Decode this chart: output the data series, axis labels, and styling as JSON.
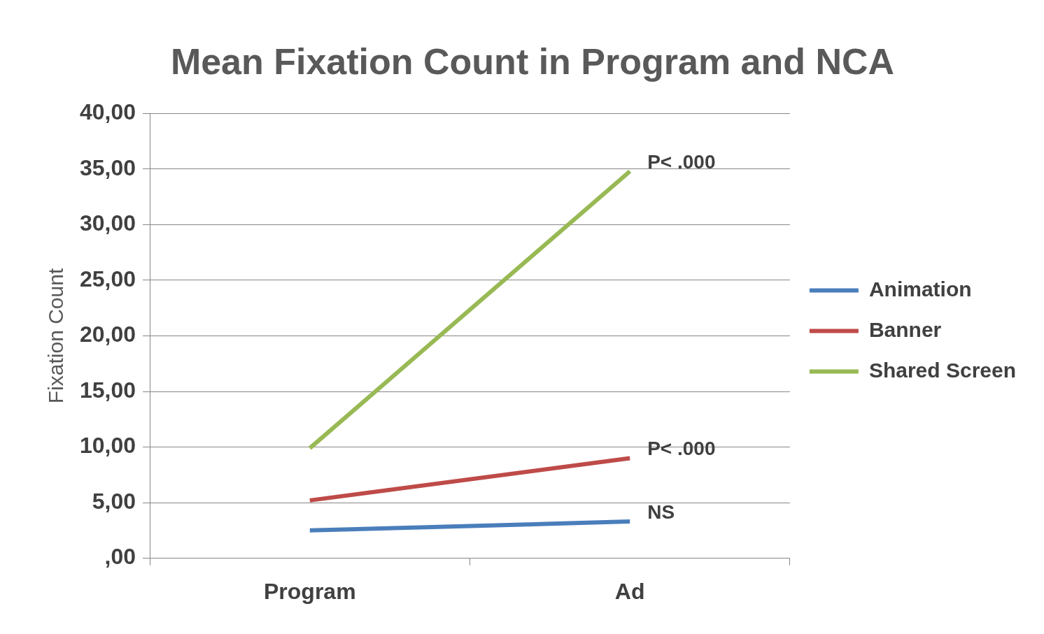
{
  "chart_data": {
    "type": "line",
    "title": "Mean Fixation Count in Program and NCA",
    "ylabel": "Fixation Count",
    "categories": [
      "Program",
      "Ad"
    ],
    "series": [
      {
        "name": "Animation",
        "color": "#4a7ebb",
        "values": [
          2.5,
          3.3
        ]
      },
      {
        "name": "Banner",
        "color": "#be4b48",
        "values": [
          5.2,
          9.0
        ]
      },
      {
        "name": "Shared Screen",
        "color": "#98b954",
        "values": [
          9.9,
          34.8
        ]
      }
    ],
    "ylim": [
      0,
      40
    ],
    "yticks": [
      {
        "value": 0,
        "label": ",00"
      },
      {
        "value": 5,
        "label": "5,00"
      },
      {
        "value": 10,
        "label": "10,00"
      },
      {
        "value": 15,
        "label": "15,00"
      },
      {
        "value": 20,
        "label": "20,00"
      },
      {
        "value": 25,
        "label": "25,00"
      },
      {
        "value": 30,
        "label": "30,00"
      },
      {
        "value": 35,
        "label": "35,00"
      },
      {
        "value": 40,
        "label": "40,00"
      }
    ],
    "annotations": [
      {
        "text": "P< .000",
        "x": "Ad",
        "y": 34.8
      },
      {
        "text": "P< .000",
        "x": "Ad",
        "y": 9.0
      },
      {
        "text": "NS",
        "x": "Ad",
        "y": 3.3
      }
    ],
    "grid": "y",
    "legend": "right",
    "marker": "none",
    "line_style": "solid"
  }
}
